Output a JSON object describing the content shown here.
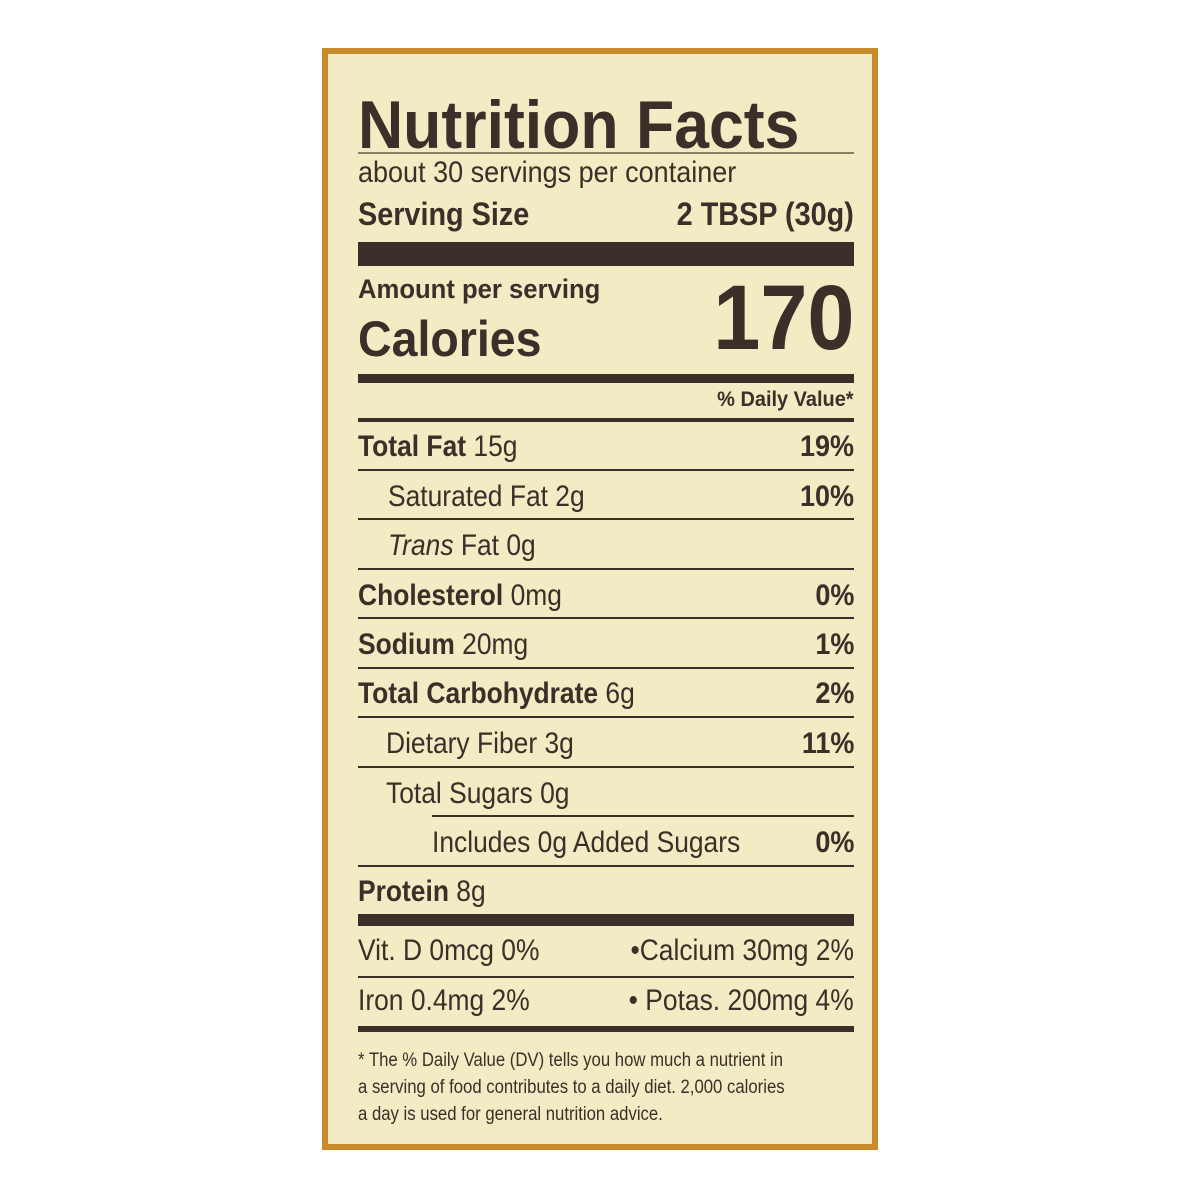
{
  "label": {
    "title": "Nutrition Facts",
    "servings_per_container": "about 30 servings per container",
    "serving_size_label": "Serving Size",
    "serving_size_value": "2 TBSP (30g)",
    "amount_per_serving": "Amount per serving",
    "calories_label": "Calories",
    "calories_value": "170",
    "daily_value_header": "% Daily Value*",
    "nutrients": [
      {
        "name": "Total Fat",
        "amount": "15g",
        "dv": "19%"
      },
      {
        "name": "Saturated Fat",
        "amount": "2g",
        "dv": "10%"
      },
      {
        "name": "Trans",
        "name_suffix": "Fat",
        "amount": "0g",
        "dv": ""
      },
      {
        "name": "Cholesterol",
        "amount": "0mg",
        "dv": "0%"
      },
      {
        "name": "Sodium",
        "amount": "20mg",
        "dv": "1%"
      },
      {
        "name": "Total Carbohydrate",
        "amount": "6g",
        "dv": "2%"
      },
      {
        "name": "Dietary Fiber",
        "amount": "3g",
        "dv": "11%"
      },
      {
        "name": "Total Sugars",
        "amount": "0g",
        "dv": ""
      },
      {
        "name": "Includes 0g Added Sugars",
        "amount": "",
        "dv": "0%"
      },
      {
        "name": "Protein",
        "amount": "8g",
        "dv": ""
      }
    ],
    "micros": [
      {
        "left": "Vit. D 0mcg 0%",
        "right": "Calcium 30mg 2%"
      },
      {
        "left": "Iron 0.4mg 2%",
        "right": "Potas. 200mg 4%"
      }
    ],
    "bullet": "•",
    "footnote": [
      "* The % Daily Value (DV) tells you how much a nutrient in",
      "a serving of food contributes to a daily diet. 2,000 calories",
      "a day is used for general nutrition advice."
    ],
    "colors": {
      "border": "#c98a2c",
      "background": "#f2ebc3",
      "ink": "#3a2f29"
    }
  }
}
